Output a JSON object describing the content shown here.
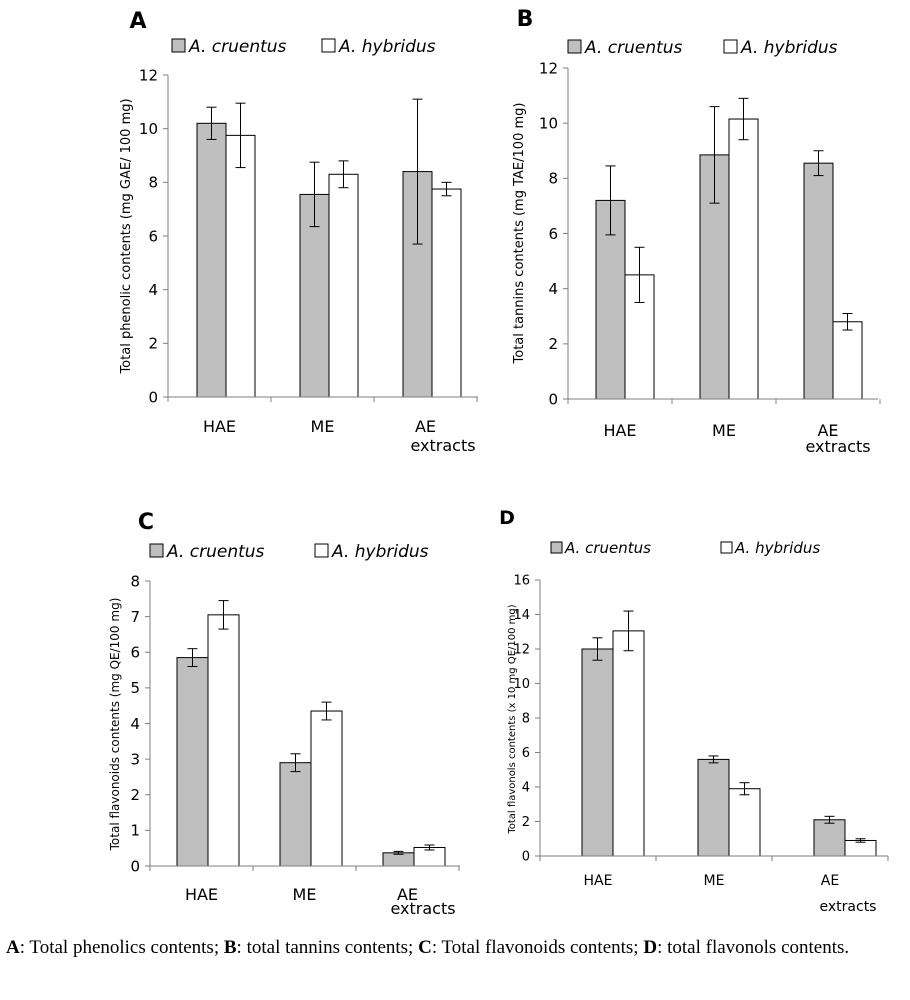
{
  "chart_data": [
    {
      "type": "bar",
      "panel_label": "A",
      "title": "",
      "categories": [
        "HAE",
        "ME",
        "AE"
      ],
      "xlabel": "extracts",
      "ylabel": "Total phenolic contents  (mg GAE/ 100 mg)",
      "ylim": [
        0,
        12
      ],
      "yticks": [
        0,
        2,
        4,
        6,
        8,
        10,
        12
      ],
      "legend_position": "top",
      "series": [
        {
          "name": "A. cruentus",
          "color": "#bfbfbf",
          "values": [
            10.2,
            7.55,
            8.4
          ],
          "errors": [
            0.6,
            1.2,
            2.7
          ]
        },
        {
          "name": "A. hybridus",
          "color": "#ffffff",
          "values": [
            9.75,
            8.3,
            7.75
          ],
          "errors": [
            1.2,
            0.5,
            0.25
          ]
        }
      ]
    },
    {
      "type": "bar",
      "panel_label": "B",
      "title": "",
      "categories": [
        "HAE",
        "ME",
        "AE"
      ],
      "xlabel": "extracts",
      "ylabel": "Total tannins contents (mg TAE/100 mg)",
      "ylim": [
        0,
        12
      ],
      "yticks": [
        0,
        2,
        4,
        6,
        8,
        10,
        12
      ],
      "legend_position": "top",
      "series": [
        {
          "name": "A. cruentus",
          "color": "#bfbfbf",
          "values": [
            7.2,
            8.85,
            8.55
          ],
          "errors": [
            1.25,
            1.75,
            0.45
          ]
        },
        {
          "name": "A. hybridus",
          "color": "#ffffff",
          "values": [
            4.5,
            10.15,
            2.8
          ],
          "errors": [
            1.0,
            0.75,
            0.3
          ]
        }
      ]
    },
    {
      "type": "bar",
      "panel_label": "C",
      "title": "",
      "categories": [
        "HAE",
        "ME",
        "AE"
      ],
      "xlabel": "extracts",
      "ylabel": "Total flavonoids contents (mg QE/100 mg)",
      "ylim": [
        0,
        8
      ],
      "yticks": [
        0,
        1,
        2,
        3,
        4,
        5,
        6,
        7,
        8
      ],
      "legend_position": "top",
      "series": [
        {
          "name": "A. cruentus",
          "color": "#bfbfbf",
          "values": [
            5.85,
            2.9,
            0.37
          ],
          "errors": [
            0.25,
            0.25,
            0.04
          ]
        },
        {
          "name": "A. hybridus",
          "color": "#ffffff",
          "values": [
            7.05,
            4.35,
            0.52
          ],
          "errors": [
            0.4,
            0.25,
            0.07
          ]
        }
      ]
    },
    {
      "type": "bar",
      "panel_label": "D",
      "title": "",
      "categories": [
        "HAE",
        "ME",
        "AE"
      ],
      "xlabel": "extracts",
      "ylabel": "Total flavonols contents (x 10 mg QE/100 mg)",
      "ylim": [
        0,
        16
      ],
      "yticks": [
        0,
        2,
        4,
        6,
        8,
        10,
        12,
        14,
        16
      ],
      "legend_position": "top",
      "series": [
        {
          "name": "A. cruentus",
          "color": "#bfbfbf",
          "values": [
            12.0,
            5.6,
            2.1
          ],
          "errors": [
            0.65,
            0.2,
            0.2
          ]
        },
        {
          "name": "A. hybridus",
          "color": "#ffffff",
          "values": [
            13.05,
            3.9,
            0.9
          ],
          "errors": [
            1.15,
            0.35,
            0.1
          ]
        }
      ]
    }
  ],
  "caption": {
    "label_a": "A",
    "text_a": ": Total phenolics contents; ",
    "label_b": "B",
    "text_b": ": total tannins contents; ",
    "label_c": "C",
    "text_c": ": Total flavonoids contents; ",
    "label_d": "D",
    "text_d": ": total flavonols contents."
  }
}
